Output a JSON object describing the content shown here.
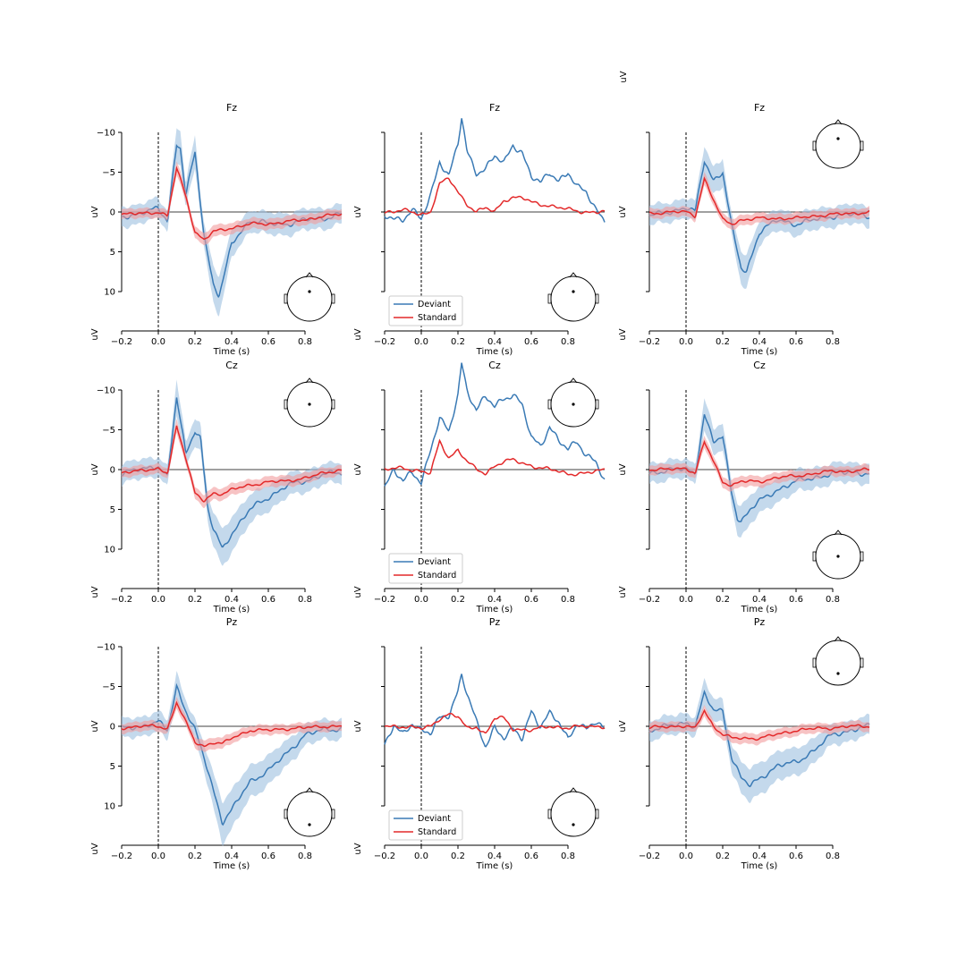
{
  "colors": {
    "deviant": "#3a7ab5",
    "standard": "#e3292a",
    "deviant_band": "#9dbfe0",
    "standard_band": "#f19b9d"
  },
  "units_label": "uV",
  "xlabel": "Time (s)",
  "legend": {
    "deviant": "Deviant",
    "standard": "Standard"
  },
  "x_ticks": [
    "−0.2",
    "0.0",
    "0.2",
    "0.4",
    "0.6",
    "0.8"
  ],
  "y_ticks": [
    "−10",
    "−5",
    "0",
    "5",
    "10"
  ],
  "chart_data": [
    {
      "type": "line",
      "title": "Fz",
      "xlim": [
        -0.2,
        1.0
      ],
      "ylim": [
        -10,
        10
      ],
      "inverted_y": true,
      "ci": true,
      "series": [
        {
          "name": "Deviant",
          "x": [
            -0.2,
            -0.1,
            0.0,
            0.05,
            0.1,
            0.12,
            0.15,
            0.2,
            0.25,
            0.3,
            0.33,
            0.35,
            0.4,
            0.5,
            0.6,
            0.7,
            0.8,
            0.9,
            1.0
          ],
          "values": [
            0.5,
            0.3,
            -0.5,
            1.0,
            -8.5,
            -8.0,
            -2.0,
            -7.5,
            3.0,
            9.0,
            10.5,
            9.0,
            4.0,
            1.0,
            1.5,
            1.5,
            1.0,
            0.8,
            0.2
          ]
        },
        {
          "name": "Standard",
          "x": [
            -0.2,
            -0.1,
            0.0,
            0.05,
            0.1,
            0.15,
            0.2,
            0.25,
            0.3,
            0.4,
            0.5,
            0.6,
            0.7,
            0.8,
            0.9,
            1.0
          ],
          "values": [
            0.3,
            0.2,
            0.0,
            0.5,
            -5.5,
            -2.0,
            2.5,
            3.5,
            2.5,
            2.0,
            1.5,
            1.5,
            1.2,
            1.0,
            0.5,
            0.3
          ]
        }
      ]
    },
    {
      "type": "line",
      "title": "Fz",
      "xlim": [
        -0.2,
        1.0
      ],
      "ylim": [
        -10,
        10
      ],
      "inverted_y": true,
      "ci": false,
      "series": [
        {
          "name": "Deviant",
          "x": [
            -0.2,
            -0.15,
            -0.1,
            -0.05,
            0.0,
            0.05,
            0.1,
            0.15,
            0.2,
            0.22,
            0.25,
            0.3,
            0.35,
            0.4,
            0.45,
            0.5,
            0.55,
            0.6,
            0.65,
            0.7,
            0.75,
            0.8,
            0.85,
            0.9,
            0.95,
            1.0
          ],
          "values": [
            0.5,
            0.8,
            0.8,
            -0.2,
            1.0,
            -2.0,
            -6.5,
            -4.5,
            -8.5,
            -11.8,
            -7.5,
            -5.0,
            -5.5,
            -7.0,
            -6.0,
            -8.5,
            -7.5,
            -4.5,
            -3.5,
            -5.0,
            -4.0,
            -5.0,
            -3.0,
            -2.5,
            -0.5,
            1.0
          ]
        },
        {
          "name": "Standard",
          "x": [
            -0.2,
            -0.1,
            0.0,
            0.05,
            0.1,
            0.15,
            0.2,
            0.25,
            0.3,
            0.35,
            0.4,
            0.45,
            0.5,
            0.55,
            0.6,
            0.7,
            0.8,
            0.9,
            1.0
          ],
          "values": [
            0.0,
            -0.2,
            0.3,
            0.0,
            -3.5,
            -4.2,
            -2.5,
            -1.0,
            0.0,
            -0.5,
            0.0,
            -1.5,
            -1.8,
            -1.8,
            -1.2,
            -0.8,
            -0.3,
            0.0,
            0.0
          ]
        }
      ]
    },
    {
      "type": "line",
      "title": "Fz",
      "xlim": [
        -0.2,
        1.0
      ],
      "ylim": [
        -10,
        10
      ],
      "inverted_y": true,
      "ci": true,
      "series": [
        {
          "name": "Deviant",
          "x": [
            -0.2,
            -0.1,
            0.0,
            0.05,
            0.1,
            0.15,
            0.2,
            0.25,
            0.3,
            0.33,
            0.35,
            0.4,
            0.5,
            0.6,
            0.7,
            0.8,
            0.9,
            1.0
          ],
          "values": [
            0.5,
            0.0,
            -0.5,
            0.0,
            -6.5,
            -4.0,
            -5.0,
            2.0,
            7.0,
            7.5,
            6.0,
            2.5,
            1.0,
            1.5,
            1.0,
            0.5,
            0.3,
            0.5
          ]
        },
        {
          "name": "Standard",
          "x": [
            -0.2,
            -0.1,
            0.0,
            0.05,
            0.1,
            0.15,
            0.2,
            0.25,
            0.3,
            0.4,
            0.5,
            0.6,
            0.7,
            0.8,
            0.9,
            1.0
          ],
          "values": [
            0.2,
            0.0,
            0.0,
            0.5,
            -4.2,
            -1.5,
            1.0,
            1.5,
            1.0,
            0.8,
            0.8,
            0.8,
            0.5,
            0.3,
            0.2,
            0.0
          ]
        }
      ]
    },
    {
      "type": "line",
      "title": "Cz",
      "xlim": [
        -0.2,
        1.0
      ],
      "ylim": [
        -10,
        10
      ],
      "inverted_y": true,
      "ci": true,
      "series": [
        {
          "name": "Deviant",
          "x": [
            -0.2,
            -0.1,
            0.0,
            0.05,
            0.1,
            0.15,
            0.2,
            0.23,
            0.27,
            0.3,
            0.35,
            0.4,
            0.5,
            0.6,
            0.7,
            0.8,
            0.9,
            1.0
          ],
          "values": [
            0.5,
            0.0,
            -0.5,
            1.0,
            -9.0,
            -2.0,
            -5.0,
            -4.0,
            5.0,
            7.5,
            10.0,
            8.0,
            5.0,
            3.5,
            2.0,
            1.5,
            0.5,
            0.5
          ]
        },
        {
          "name": "Standard",
          "x": [
            -0.2,
            -0.1,
            0.0,
            0.05,
            0.1,
            0.15,
            0.2,
            0.25,
            0.3,
            0.35,
            0.4,
            0.5,
            0.6,
            0.7,
            0.8,
            0.9,
            1.0
          ],
          "values": [
            0.5,
            0.0,
            0.0,
            0.5,
            -5.5,
            -1.5,
            3.0,
            4.0,
            3.0,
            3.0,
            2.5,
            2.0,
            1.5,
            1.5,
            1.0,
            0.5,
            0.0
          ]
        }
      ]
    },
    {
      "type": "line",
      "title": "Cz",
      "xlim": [
        -0.2,
        1.0
      ],
      "ylim": [
        -10,
        10
      ],
      "inverted_y": true,
      "ci": false,
      "series": [
        {
          "name": "Deviant",
          "x": [
            -0.2,
            -0.15,
            -0.1,
            -0.05,
            0.0,
            0.05,
            0.1,
            0.15,
            0.2,
            0.22,
            0.25,
            0.3,
            0.35,
            0.4,
            0.45,
            0.5,
            0.55,
            0.6,
            0.65,
            0.7,
            0.75,
            0.8,
            0.85,
            0.9,
            0.95,
            1.0
          ],
          "values": [
            2.0,
            0.0,
            1.5,
            0.5,
            1.5,
            -2.5,
            -6.5,
            -4.5,
            -9.5,
            -13.5,
            -10.0,
            -7.5,
            -9.0,
            -8.0,
            -9.0,
            -9.5,
            -8.0,
            -4.0,
            -3.0,
            -5.5,
            -3.5,
            -2.5,
            -3.5,
            -2.0,
            -1.0,
            1.5
          ]
        },
        {
          "name": "Standard",
          "x": [
            -0.2,
            -0.1,
            0.0,
            0.05,
            0.1,
            0.15,
            0.2,
            0.25,
            0.3,
            0.35,
            0.4,
            0.45,
            0.5,
            0.55,
            0.6,
            0.7,
            0.8,
            0.9,
            1.0
          ],
          "values": [
            0.0,
            -0.2,
            0.2,
            0.5,
            -3.5,
            -1.5,
            -2.5,
            -1.0,
            0.0,
            0.5,
            -0.5,
            -1.0,
            -1.2,
            -0.8,
            -0.5,
            0.0,
            0.5,
            0.5,
            0.0
          ]
        }
      ]
    },
    {
      "type": "line",
      "title": "Cz",
      "xlim": [
        -0.2,
        1.0
      ],
      "ylim": [
        -10,
        10
      ],
      "inverted_y": true,
      "ci": true,
      "series": [
        {
          "name": "Deviant",
          "x": [
            -0.2,
            -0.1,
            0.0,
            0.05,
            0.1,
            0.15,
            0.2,
            0.25,
            0.28,
            0.3,
            0.35,
            0.4,
            0.5,
            0.6,
            0.7,
            0.8,
            0.9,
            1.0
          ],
          "values": [
            0.5,
            0.0,
            0.0,
            0.5,
            -7.0,
            -3.5,
            -4.0,
            3.0,
            6.0,
            6.5,
            5.0,
            4.0,
            2.5,
            1.5,
            1.0,
            0.5,
            0.3,
            0.5
          ]
        },
        {
          "name": "Standard",
          "x": [
            -0.2,
            -0.1,
            0.0,
            0.05,
            0.1,
            0.15,
            0.2,
            0.25,
            0.3,
            0.4,
            0.5,
            0.6,
            0.7,
            0.8,
            0.9,
            1.0
          ],
          "values": [
            0.0,
            0.0,
            -0.2,
            0.5,
            -3.5,
            -1.0,
            1.5,
            2.0,
            1.5,
            1.5,
            1.0,
            0.8,
            0.5,
            0.2,
            0.2,
            0.0
          ]
        }
      ]
    },
    {
      "type": "line",
      "title": "Pz",
      "xlim": [
        -0.2,
        1.0
      ],
      "ylim": [
        -10,
        10
      ],
      "inverted_y": true,
      "ci": true,
      "series": [
        {
          "name": "Deviant",
          "x": [
            -0.2,
            -0.1,
            0.0,
            0.05,
            0.1,
            0.15,
            0.2,
            0.25,
            0.3,
            0.35,
            0.4,
            0.5,
            0.6,
            0.7,
            0.8,
            0.9,
            1.0
          ],
          "values": [
            0.3,
            0.0,
            -0.5,
            0.5,
            -5.0,
            -2.0,
            0.5,
            4.0,
            8.0,
            12.0,
            10.5,
            7.0,
            5.5,
            3.5,
            1.0,
            0.5,
            0.3
          ]
        },
        {
          "name": "Standard",
          "x": [
            -0.2,
            -0.1,
            0.0,
            0.05,
            0.1,
            0.15,
            0.2,
            0.25,
            0.3,
            0.35,
            0.4,
            0.5,
            0.6,
            0.7,
            0.8,
            0.9,
            1.0
          ],
          "values": [
            0.2,
            0.0,
            0.0,
            0.3,
            -3.0,
            -0.5,
            2.0,
            2.5,
            2.0,
            2.2,
            1.5,
            0.5,
            0.5,
            0.3,
            0.2,
            0.0,
            0.0
          ]
        }
      ]
    },
    {
      "type": "line",
      "title": "Pz",
      "xlim": [
        -0.2,
        1.0
      ],
      "ylim": [
        -10,
        10
      ],
      "inverted_y": true,
      "ci": false,
      "series": [
        {
          "name": "Deviant",
          "x": [
            -0.2,
            -0.15,
            -0.1,
            -0.05,
            0.0,
            0.05,
            0.1,
            0.15,
            0.2,
            0.22,
            0.25,
            0.3,
            0.35,
            0.4,
            0.45,
            0.5,
            0.55,
            0.6,
            0.65,
            0.7,
            0.75,
            0.8,
            0.85,
            0.9,
            0.95,
            1.0
          ],
          "values": [
            2.5,
            0.0,
            1.0,
            -0.5,
            0.5,
            1.0,
            -1.0,
            -1.5,
            -4.5,
            -6.5,
            -4.0,
            -0.5,
            2.5,
            0.0,
            1.5,
            0.5,
            1.5,
            -2.0,
            0.0,
            -1.5,
            -0.5,
            1.5,
            -0.5,
            0.5,
            -0.5,
            0.3
          ]
        },
        {
          "name": "Standard",
          "x": [
            -0.2,
            -0.1,
            0.0,
            0.05,
            0.1,
            0.15,
            0.2,
            0.25,
            0.3,
            0.35,
            0.4,
            0.45,
            0.5,
            0.6,
            0.7,
            0.8,
            0.9,
            1.0
          ],
          "values": [
            0.0,
            0.0,
            0.3,
            0.0,
            -1.0,
            -1.5,
            -1.2,
            0.3,
            0.0,
            1.0,
            -1.0,
            -1.0,
            0.3,
            0.5,
            0.0,
            0.2,
            0.0,
            0.0
          ]
        }
      ]
    },
    {
      "type": "line",
      "title": "Pz",
      "xlim": [
        -0.2,
        1.0
      ],
      "ylim": [
        -10,
        10
      ],
      "inverted_y": true,
      "ci": true,
      "series": [
        {
          "name": "Deviant",
          "x": [
            -0.2,
            -0.1,
            0.0,
            0.05,
            0.1,
            0.15,
            0.2,
            0.25,
            0.3,
            0.35,
            0.4,
            0.5,
            0.6,
            0.7,
            0.8,
            0.9,
            1.0
          ],
          "values": [
            0.5,
            0.0,
            -0.5,
            0.0,
            -4.0,
            -2.0,
            -2.0,
            4.0,
            6.5,
            7.5,
            6.5,
            5.0,
            4.5,
            3.0,
            1.0,
            0.5,
            0.0
          ]
        },
        {
          "name": "Standard",
          "x": [
            -0.2,
            -0.1,
            0.0,
            0.05,
            0.1,
            0.15,
            0.2,
            0.25,
            0.3,
            0.4,
            0.5,
            0.6,
            0.7,
            0.8,
            0.9,
            1.0
          ],
          "values": [
            0.2,
            0.0,
            0.0,
            0.3,
            -2.0,
            0.0,
            1.0,
            1.5,
            1.5,
            1.5,
            1.0,
            0.5,
            0.3,
            0.2,
            0.0,
            0.0
          ]
        }
      ]
    }
  ]
}
